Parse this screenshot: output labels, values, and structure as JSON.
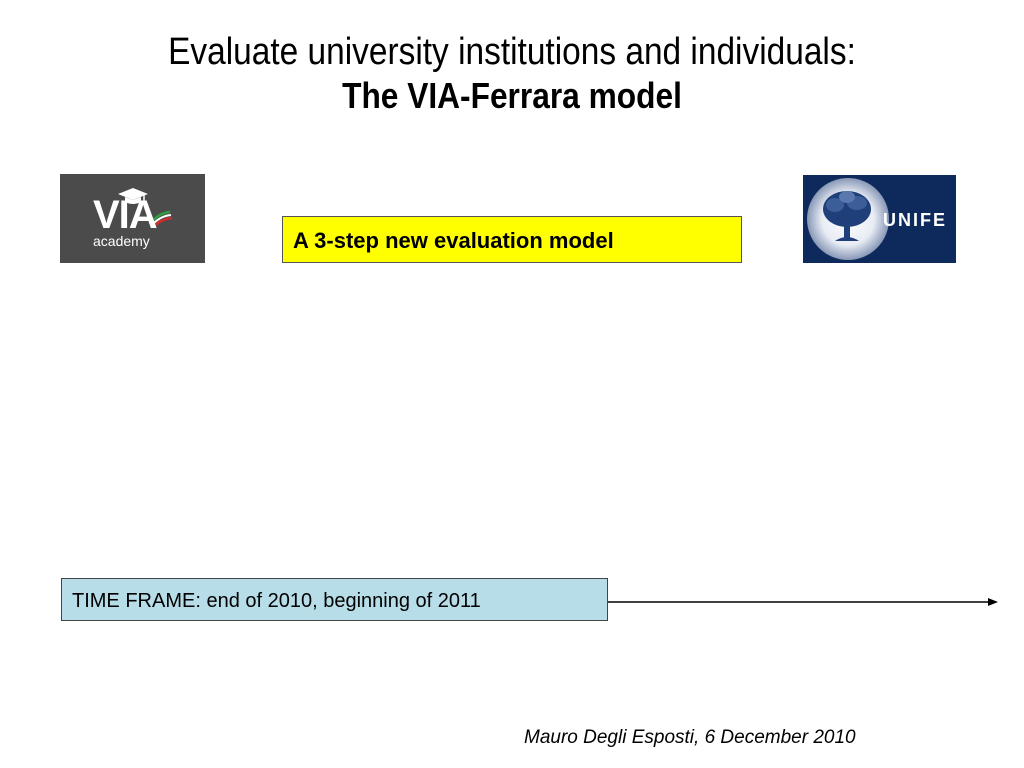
{
  "slide": {
    "title_line1": "Evaluate university institutions and individuals:",
    "title_line2": "The VIA-Ferrara model",
    "step_box_text": "A 3-step new evaluation model",
    "time_frame_text": "TIME FRAME: end of 2010, beginning of 2011",
    "footer": "Mauro Degli Esposti, 6 December 2010"
  },
  "logos": {
    "left": {
      "line1": "VIA",
      "line2": "academy",
      "icon": "graduation-cap-icon"
    },
    "right": {
      "text": "UNIFE",
      "icon": "tree-icon"
    }
  },
  "colors": {
    "step_box_bg": "#ffff00",
    "time_box_bg": "#b7dde8",
    "via_logo_bg": "#4b4b4b",
    "unife_logo_bg": "#0e2a5c"
  }
}
